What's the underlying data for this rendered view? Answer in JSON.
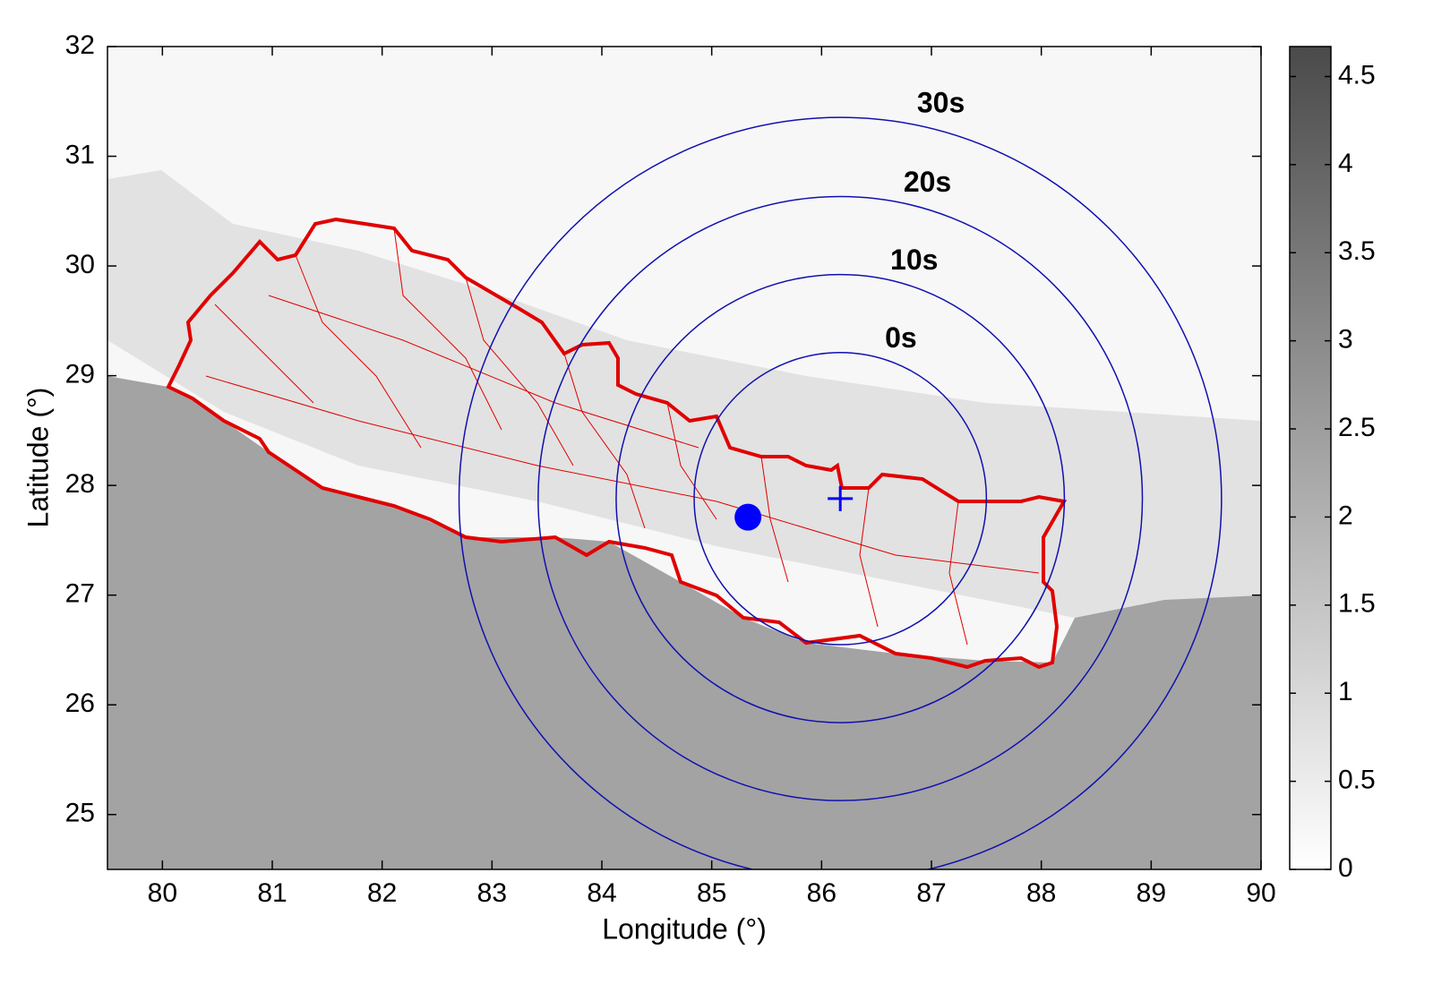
{
  "chart_data": {
    "type": "map",
    "xlabel": "Longitude (°)",
    "ylabel": "Latitude (°)",
    "xlim": [
      79.5,
      90
    ],
    "ylim": [
      24.5,
      32
    ],
    "xticks": [
      80,
      81,
      82,
      83,
      84,
      85,
      86,
      87,
      88,
      89,
      90
    ],
    "yticks": [
      25,
      26,
      27,
      28,
      29,
      30,
      31,
      32
    ],
    "colorbar": {
      "lim": [
        0,
        4.67
      ],
      "ticks": [
        0,
        0.5,
        1,
        1.5,
        2,
        2.5,
        3,
        3.5,
        4,
        4.5
      ]
    },
    "rings": {
      "center": [
        86.17,
        27.88
      ],
      "radii": [
        1.33,
        2.04,
        2.75,
        3.47
      ],
      "labels": [
        "0s",
        "10s",
        "20s",
        "30s"
      ],
      "color": "#1010b0"
    },
    "epicenter": {
      "x": 85.33,
      "y": 27.71,
      "color": "#0000ff"
    },
    "station": {
      "x": 86.17,
      "y": 27.88,
      "color": "#0000ff"
    }
  }
}
